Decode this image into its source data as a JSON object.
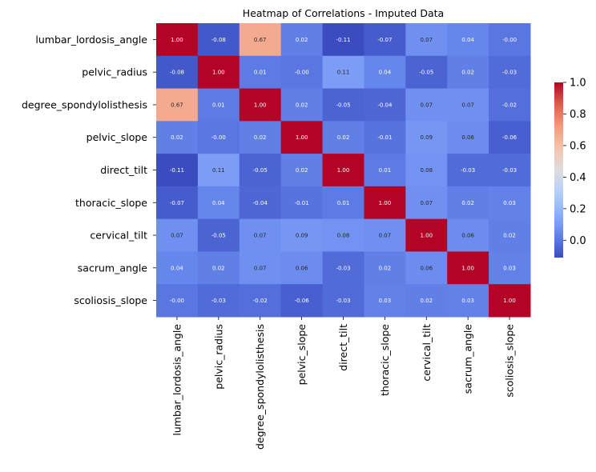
{
  "chart_data": {
    "type": "heatmap",
    "title": "Heatmap of Correlations - Imputed Data",
    "xlabel": "",
    "ylabel": "",
    "variables": [
      "lumbar_lordosis_angle",
      "pelvic_radius",
      "degree_spondylolisthesis",
      "pelvic_slope",
      "direct_tilt",
      "thoracic_slope",
      "cervical_tilt",
      "sacrum_angle",
      "scoliosis_slope"
    ],
    "values": [
      [
        1.0,
        -0.08,
        0.67,
        0.02,
        -0.11,
        -0.07,
        0.07,
        0.04,
        -0.0
      ],
      [
        -0.08,
        1.0,
        0.01,
        -0.0,
        0.11,
        0.04,
        -0.05,
        0.02,
        -0.03
      ],
      [
        0.67,
        0.01,
        1.0,
        0.02,
        -0.05,
        -0.04,
        0.07,
        0.07,
        -0.02
      ],
      [
        0.02,
        -0.0,
        0.02,
        1.0,
        0.02,
        -0.01,
        0.09,
        0.06,
        -0.06
      ],
      [
        -0.11,
        0.11,
        -0.05,
        0.02,
        1.0,
        0.01,
        0.08,
        -0.03,
        -0.03
      ],
      [
        -0.07,
        0.04,
        -0.04,
        -0.01,
        0.01,
        1.0,
        0.07,
        0.02,
        0.03
      ],
      [
        0.07,
        -0.05,
        0.07,
        0.09,
        0.08,
        0.07,
        1.0,
        0.06,
        0.02
      ],
      [
        0.04,
        0.02,
        0.07,
        0.06,
        -0.03,
        0.02,
        0.06,
        1.0,
        0.03
      ],
      [
        -0.0,
        -0.03,
        -0.02,
        -0.06,
        -0.03,
        0.03,
        0.02,
        0.03,
        1.0
      ]
    ],
    "annotations": [
      [
        "1.00",
        "-0.08",
        "0.67",
        "0.02",
        "-0.11",
        "-0.07",
        "0.07",
        "0.04",
        "-0.00"
      ],
      [
        "-0.08",
        "1.00",
        "0.01",
        "-0.00",
        "0.11",
        "0.04",
        "-0.05",
        "0.02",
        "-0.03"
      ],
      [
        "0.67",
        "0.01",
        "1.00",
        "0.02",
        "-0.05",
        "-0.04",
        "0.07",
        "0.07",
        "-0.02"
      ],
      [
        "0.02",
        "-0.00",
        "0.02",
        "1.00",
        "0.02",
        "-0.01",
        "0.09",
        "0.06",
        "-0.06"
      ],
      [
        "-0.11",
        "0.11",
        "-0.05",
        "0.02",
        "1.00",
        "0.01",
        "0.08",
        "-0.03",
        "-0.03"
      ],
      [
        "-0.07",
        "0.04",
        "-0.04",
        "-0.01",
        "0.01",
        "1.00",
        "0.07",
        "0.02",
        "0.03"
      ],
      [
        "0.07",
        "-0.05",
        "0.07",
        "0.09",
        "0.08",
        "0.07",
        "1.00",
        "0.06",
        "0.02"
      ],
      [
        "0.04",
        "0.02",
        "0.07",
        "0.06",
        "-0.03",
        "0.02",
        "0.06",
        "1.00",
        "0.03"
      ],
      [
        "-0.00",
        "-0.03",
        "-0.02",
        "-0.06",
        "-0.03",
        "0.03",
        "0.02",
        "0.03",
        "1.00"
      ]
    ],
    "colormap": "coolwarm",
    "color_range": [
      -0.11,
      1.0
    ],
    "colorbar": {
      "ticks": [
        0.0,
        0.2,
        0.4,
        0.6,
        0.8,
        1.0
      ],
      "tick_labels": [
        "0.0",
        "0.2",
        "0.4",
        "0.6",
        "0.8",
        "1.0"
      ]
    },
    "grid": false,
    "legend": "colorbar-right"
  }
}
